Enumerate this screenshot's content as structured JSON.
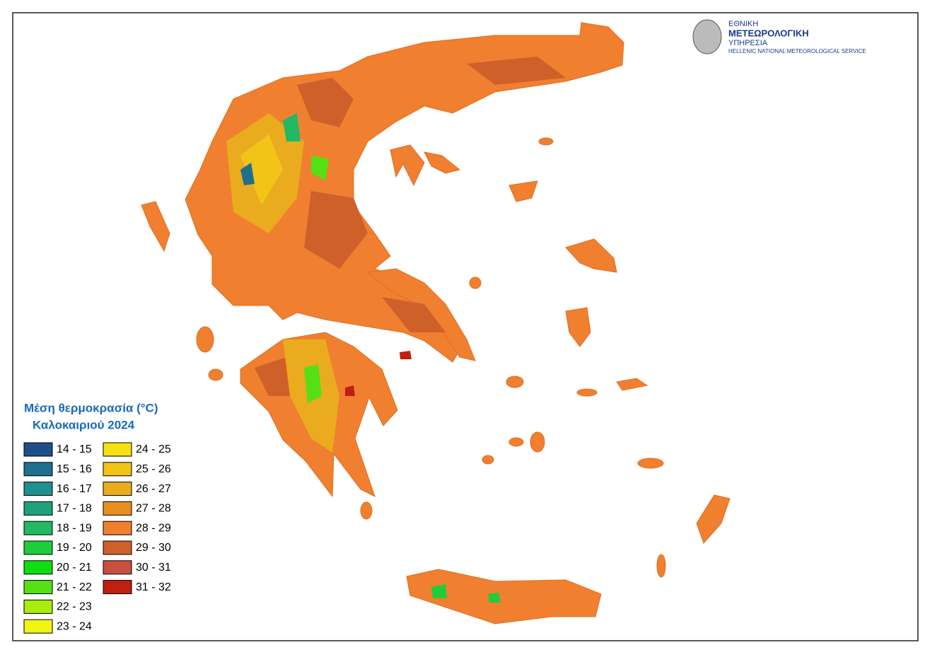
{
  "logo": {
    "line1": "ΕΘΝΙΚΗ",
    "line2": "ΜΕΤΕΩΡΟΛΟΓΙΚΗ",
    "line3": "ΥΠΗΡΕΣΙΑ",
    "line4": "HELLENIC NATIONAL METEOROLOGICAL SERVICE"
  },
  "legend": {
    "title_line1": "Μέση θερμοκρασία (°C)",
    "title_line2": "Καλοκαιριού 2024",
    "items": [
      {
        "label": "14 - 15",
        "color": "#1f4e8c"
      },
      {
        "label": "15 - 16",
        "color": "#1f6f8f"
      },
      {
        "label": "16 - 17",
        "color": "#1f9090"
      },
      {
        "label": "17 - 18",
        "color": "#20a07a"
      },
      {
        "label": "18 - 19",
        "color": "#22b864"
      },
      {
        "label": "19 - 20",
        "color": "#1ecc3c"
      },
      {
        "label": "20 - 21",
        "color": "#10dd10"
      },
      {
        "label": "21 - 22",
        "color": "#55e015"
      },
      {
        "label": "22 - 23",
        "color": "#a8ec10"
      },
      {
        "label": "23 - 24",
        "color": "#f0f514"
      },
      {
        "label": "24 - 25",
        "color": "#f7e010"
      },
      {
        "label": "25 - 26",
        "color": "#f2c418"
      },
      {
        "label": "26 - 27",
        "color": "#eaab1e"
      },
      {
        "label": "27 - 28",
        "color": "#e8901e"
      },
      {
        "label": "28 - 29",
        "color": "#f07f30"
      },
      {
        "label": "29 - 30",
        "color": "#d0602a"
      },
      {
        "label": "30 - 31",
        "color": "#c85040"
      },
      {
        "label": "31 - 32",
        "color": "#c02010"
      }
    ]
  }
}
